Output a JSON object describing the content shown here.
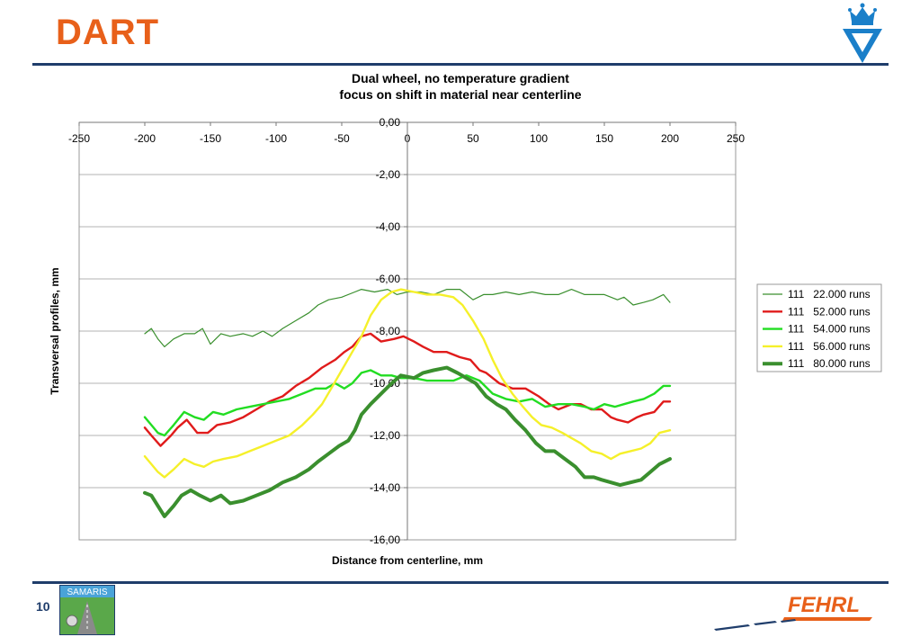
{
  "slide": {
    "title": "DART",
    "page_number": "10"
  },
  "logos": {
    "left_logo_text": "SAMARIS",
    "right_logo_text": "FEHRL"
  },
  "colors": {
    "title": "#e8601a",
    "rule": "#1f3d6b",
    "crest": "#1a7fc9"
  },
  "chart_data": {
    "type": "line",
    "title": "Dual wheel, no temperature gradient",
    "subtitle": "focus on shift in material near centerline",
    "xlabel": "Distance from centerline, mm",
    "ylabel": "Transversal profiles, mm",
    "xlim": [
      -250,
      250
    ],
    "ylim": [
      -16,
      0
    ],
    "x_ticks": [
      -250,
      -200,
      -150,
      -100,
      -50,
      0,
      50,
      100,
      150,
      200,
      250
    ],
    "x_tick_labels": [
      "-250",
      "-200",
      "-150",
      "-100",
      "-50",
      "0",
      "50",
      "100",
      "150",
      "200",
      "250"
    ],
    "y_ticks": [
      0,
      -2,
      -4,
      -6,
      -8,
      -10,
      -12,
      -14,
      -16
    ],
    "y_tick_labels": [
      "0,00",
      "-2,00",
      "-4,00",
      "-6,00",
      "-8,00",
      "-10,00",
      "-12,00",
      "-14,00",
      "-16,00"
    ],
    "grid": "horizontal",
    "legend_position": "right",
    "series": [
      {
        "name": "111   22.000 runs",
        "color": "#3a8f2e",
        "width": 1.2,
        "points": [
          [
            -200,
            -8.1
          ],
          [
            -195,
            -7.9
          ],
          [
            -190,
            -8.3
          ],
          [
            -185,
            -8.6
          ],
          [
            -178,
            -8.3
          ],
          [
            -170,
            -8.1
          ],
          [
            -162,
            -8.1
          ],
          [
            -156,
            -7.9
          ],
          [
            -150,
            -8.5
          ],
          [
            -142,
            -8.1
          ],
          [
            -135,
            -8.2
          ],
          [
            -125,
            -8.1
          ],
          [
            -118,
            -8.2
          ],
          [
            -110,
            -8.0
          ],
          [
            -103,
            -8.2
          ],
          [
            -95,
            -7.9
          ],
          [
            -85,
            -7.6
          ],
          [
            -75,
            -7.3
          ],
          [
            -68,
            -7.0
          ],
          [
            -60,
            -6.8
          ],
          [
            -50,
            -6.7
          ],
          [
            -40,
            -6.5
          ],
          [
            -35,
            -6.4
          ],
          [
            -25,
            -6.5
          ],
          [
            -15,
            -6.4
          ],
          [
            -8,
            -6.6
          ],
          [
            0,
            -6.5
          ],
          [
            10,
            -6.5
          ],
          [
            20,
            -6.6
          ],
          [
            30,
            -6.4
          ],
          [
            40,
            -6.4
          ],
          [
            50,
            -6.8
          ],
          [
            58,
            -6.6
          ],
          [
            65,
            -6.6
          ],
          [
            75,
            -6.5
          ],
          [
            85,
            -6.6
          ],
          [
            95,
            -6.5
          ],
          [
            105,
            -6.6
          ],
          [
            115,
            -6.6
          ],
          [
            125,
            -6.4
          ],
          [
            135,
            -6.6
          ],
          [
            145,
            -6.6
          ],
          [
            150,
            -6.6
          ],
          [
            160,
            -6.8
          ],
          [
            165,
            -6.7
          ],
          [
            172,
            -7.0
          ],
          [
            180,
            -6.9
          ],
          [
            187,
            -6.8
          ],
          [
            195,
            -6.6
          ],
          [
            200,
            -6.9
          ]
        ]
      },
      {
        "name": "111   52.000 runs",
        "color": "#e01b1b",
        "width": 2.4,
        "points": [
          [
            -200,
            -11.7
          ],
          [
            -195,
            -12.0
          ],
          [
            -188,
            -12.4
          ],
          [
            -180,
            -12.0
          ],
          [
            -175,
            -11.7
          ],
          [
            -168,
            -11.4
          ],
          [
            -160,
            -11.9
          ],
          [
            -152,
            -11.9
          ],
          [
            -145,
            -11.6
          ],
          [
            -135,
            -11.5
          ],
          [
            -125,
            -11.3
          ],
          [
            -115,
            -11.0
          ],
          [
            -105,
            -10.7
          ],
          [
            -95,
            -10.5
          ],
          [
            -85,
            -10.1
          ],
          [
            -75,
            -9.8
          ],
          [
            -65,
            -9.4
          ],
          [
            -55,
            -9.1
          ],
          [
            -48,
            -8.8
          ],
          [
            -42,
            -8.6
          ],
          [
            -35,
            -8.2
          ],
          [
            -28,
            -8.1
          ],
          [
            -20,
            -8.4
          ],
          [
            -10,
            -8.3
          ],
          [
            -3,
            -8.2
          ],
          [
            5,
            -8.4
          ],
          [
            12,
            -8.6
          ],
          [
            20,
            -8.8
          ],
          [
            30,
            -8.8
          ],
          [
            40,
            -9.0
          ],
          [
            48,
            -9.1
          ],
          [
            55,
            -9.5
          ],
          [
            60,
            -9.6
          ],
          [
            70,
            -10.0
          ],
          [
            80,
            -10.2
          ],
          [
            90,
            -10.2
          ],
          [
            100,
            -10.5
          ],
          [
            108,
            -10.8
          ],
          [
            115,
            -11.0
          ],
          [
            125,
            -10.8
          ],
          [
            132,
            -10.8
          ],
          [
            140,
            -11.0
          ],
          [
            148,
            -11.0
          ],
          [
            155,
            -11.3
          ],
          [
            160,
            -11.4
          ],
          [
            168,
            -11.5
          ],
          [
            175,
            -11.3
          ],
          [
            180,
            -11.2
          ],
          [
            188,
            -11.1
          ],
          [
            195,
            -10.7
          ],
          [
            200,
            -10.7
          ]
        ]
      },
      {
        "name": "111   54.000 runs",
        "color": "#22dd22",
        "width": 2.4,
        "points": [
          [
            -200,
            -11.3
          ],
          [
            -195,
            -11.6
          ],
          [
            -190,
            -11.9
          ],
          [
            -185,
            -12.0
          ],
          [
            -178,
            -11.6
          ],
          [
            -170,
            -11.1
          ],
          [
            -162,
            -11.3
          ],
          [
            -155,
            -11.4
          ],
          [
            -148,
            -11.1
          ],
          [
            -140,
            -11.2
          ],
          [
            -130,
            -11.0
          ],
          [
            -120,
            -10.9
          ],
          [
            -110,
            -10.8
          ],
          [
            -100,
            -10.7
          ],
          [
            -90,
            -10.6
          ],
          [
            -80,
            -10.4
          ],
          [
            -70,
            -10.2
          ],
          [
            -62,
            -10.2
          ],
          [
            -55,
            -10.0
          ],
          [
            -48,
            -10.2
          ],
          [
            -42,
            -10.0
          ],
          [
            -35,
            -9.6
          ],
          [
            -28,
            -9.5
          ],
          [
            -20,
            -9.7
          ],
          [
            -12,
            -9.7
          ],
          [
            -5,
            -9.8
          ],
          [
            5,
            -9.8
          ],
          [
            15,
            -9.9
          ],
          [
            25,
            -9.9
          ],
          [
            35,
            -9.9
          ],
          [
            45,
            -9.7
          ],
          [
            55,
            -9.9
          ],
          [
            65,
            -10.4
          ],
          [
            75,
            -10.6
          ],
          [
            85,
            -10.7
          ],
          [
            95,
            -10.6
          ],
          [
            105,
            -10.9
          ],
          [
            115,
            -10.8
          ],
          [
            125,
            -10.8
          ],
          [
            135,
            -10.9
          ],
          [
            142,
            -11.0
          ],
          [
            150,
            -10.8
          ],
          [
            158,
            -10.9
          ],
          [
            165,
            -10.8
          ],
          [
            172,
            -10.7
          ],
          [
            180,
            -10.6
          ],
          [
            188,
            -10.4
          ],
          [
            195,
            -10.1
          ],
          [
            200,
            -10.1
          ]
        ]
      },
      {
        "name": "111   56.000 runs",
        "color": "#f5f02a",
        "width": 2.4,
        "points": [
          [
            -200,
            -12.8
          ],
          [
            -195,
            -13.1
          ],
          [
            -190,
            -13.4
          ],
          [
            -185,
            -13.6
          ],
          [
            -178,
            -13.3
          ],
          [
            -170,
            -12.9
          ],
          [
            -162,
            -13.1
          ],
          [
            -155,
            -13.2
          ],
          [
            -148,
            -13.0
          ],
          [
            -140,
            -12.9
          ],
          [
            -130,
            -12.8
          ],
          [
            -120,
            -12.6
          ],
          [
            -110,
            -12.4
          ],
          [
            -100,
            -12.2
          ],
          [
            -90,
            -12.0
          ],
          [
            -80,
            -11.6
          ],
          [
            -72,
            -11.2
          ],
          [
            -65,
            -10.8
          ],
          [
            -58,
            -10.2
          ],
          [
            -50,
            -9.5
          ],
          [
            -42,
            -8.8
          ],
          [
            -35,
            -8.2
          ],
          [
            -28,
            -7.4
          ],
          [
            -20,
            -6.8
          ],
          [
            -12,
            -6.5
          ],
          [
            -5,
            -6.4
          ],
          [
            5,
            -6.5
          ],
          [
            15,
            -6.6
          ],
          [
            25,
            -6.6
          ],
          [
            35,
            -6.7
          ],
          [
            42,
            -7.0
          ],
          [
            50,
            -7.6
          ],
          [
            58,
            -8.3
          ],
          [
            65,
            -9.1
          ],
          [
            72,
            -9.8
          ],
          [
            80,
            -10.4
          ],
          [
            88,
            -10.9
          ],
          [
            95,
            -11.3
          ],
          [
            102,
            -11.6
          ],
          [
            110,
            -11.7
          ],
          [
            118,
            -11.9
          ],
          [
            125,
            -12.1
          ],
          [
            132,
            -12.3
          ],
          [
            140,
            -12.6
          ],
          [
            148,
            -12.7
          ],
          [
            155,
            -12.9
          ],
          [
            162,
            -12.7
          ],
          [
            170,
            -12.6
          ],
          [
            178,
            -12.5
          ],
          [
            185,
            -12.3
          ],
          [
            192,
            -11.9
          ],
          [
            200,
            -11.8
          ]
        ]
      },
      {
        "name": "111   80.000 runs",
        "color": "#3a8f2e",
        "width": 4,
        "points": [
          [
            -200,
            -14.2
          ],
          [
            -195,
            -14.3
          ],
          [
            -190,
            -14.7
          ],
          [
            -185,
            -15.1
          ],
          [
            -178,
            -14.7
          ],
          [
            -172,
            -14.3
          ],
          [
            -165,
            -14.1
          ],
          [
            -158,
            -14.3
          ],
          [
            -150,
            -14.5
          ],
          [
            -142,
            -14.3
          ],
          [
            -135,
            -14.6
          ],
          [
            -125,
            -14.5
          ],
          [
            -115,
            -14.3
          ],
          [
            -105,
            -14.1
          ],
          [
            -95,
            -13.8
          ],
          [
            -85,
            -13.6
          ],
          [
            -75,
            -13.3
          ],
          [
            -68,
            -13.0
          ],
          [
            -60,
            -12.7
          ],
          [
            -52,
            -12.4
          ],
          [
            -45,
            -12.2
          ],
          [
            -40,
            -11.8
          ],
          [
            -35,
            -11.2
          ],
          [
            -28,
            -10.8
          ],
          [
            -20,
            -10.4
          ],
          [
            -12,
            -10.0
          ],
          [
            -5,
            -9.7
          ],
          [
            5,
            -9.8
          ],
          [
            12,
            -9.6
          ],
          [
            20,
            -9.5
          ],
          [
            30,
            -9.4
          ],
          [
            38,
            -9.6
          ],
          [
            45,
            -9.8
          ],
          [
            52,
            -10.0
          ],
          [
            60,
            -10.5
          ],
          [
            68,
            -10.8
          ],
          [
            75,
            -11.0
          ],
          [
            82,
            -11.4
          ],
          [
            90,
            -11.8
          ],
          [
            98,
            -12.3
          ],
          [
            105,
            -12.6
          ],
          [
            112,
            -12.6
          ],
          [
            120,
            -12.9
          ],
          [
            128,
            -13.2
          ],
          [
            135,
            -13.6
          ],
          [
            142,
            -13.6
          ],
          [
            148,
            -13.7
          ],
          [
            155,
            -13.8
          ],
          [
            162,
            -13.9
          ],
          [
            170,
            -13.8
          ],
          [
            178,
            -13.7
          ],
          [
            185,
            -13.4
          ],
          [
            192,
            -13.1
          ],
          [
            200,
            -12.9
          ]
        ]
      }
    ]
  }
}
